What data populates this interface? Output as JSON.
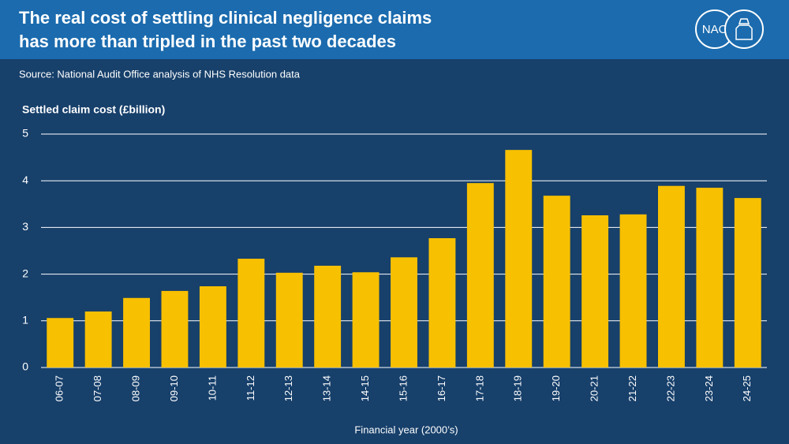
{
  "logo": "NAO",
  "chart_data": {
    "type": "bar",
    "title": [
      "The real cost of settling clinical negligence claims",
      "has more than tripled in the past two decades"
    ],
    "subtitle": "Source: National Audit Office analysis of NHS Resolution data",
    "y_label": "Settled claim cost (£billion)",
    "x_label": "Financial year (2000’s)",
    "categories": [
      "06-07",
      "07-08",
      "08-09",
      "09-10",
      "10-11",
      "11-12",
      "12-13",
      "13-14",
      "14-15",
      "15-16",
      "16-17",
      "17-18",
      "18-19",
      "19-20",
      "20-21",
      "21-22",
      "22-23",
      "23-24",
      "24-25"
    ],
    "values": [
      1.06,
      1.2,
      1.49,
      1.64,
      1.74,
      2.33,
      2.03,
      2.18,
      2.04,
      2.36,
      2.77,
      3.95,
      4.66,
      3.68,
      3.26,
      3.28,
      3.89,
      3.85,
      3.63
    ],
    "color": "#f7c000",
    "ylim": [
      0,
      5
    ],
    "yticks": [
      0,
      1,
      2,
      3,
      4,
      5
    ],
    "grid": true
  }
}
